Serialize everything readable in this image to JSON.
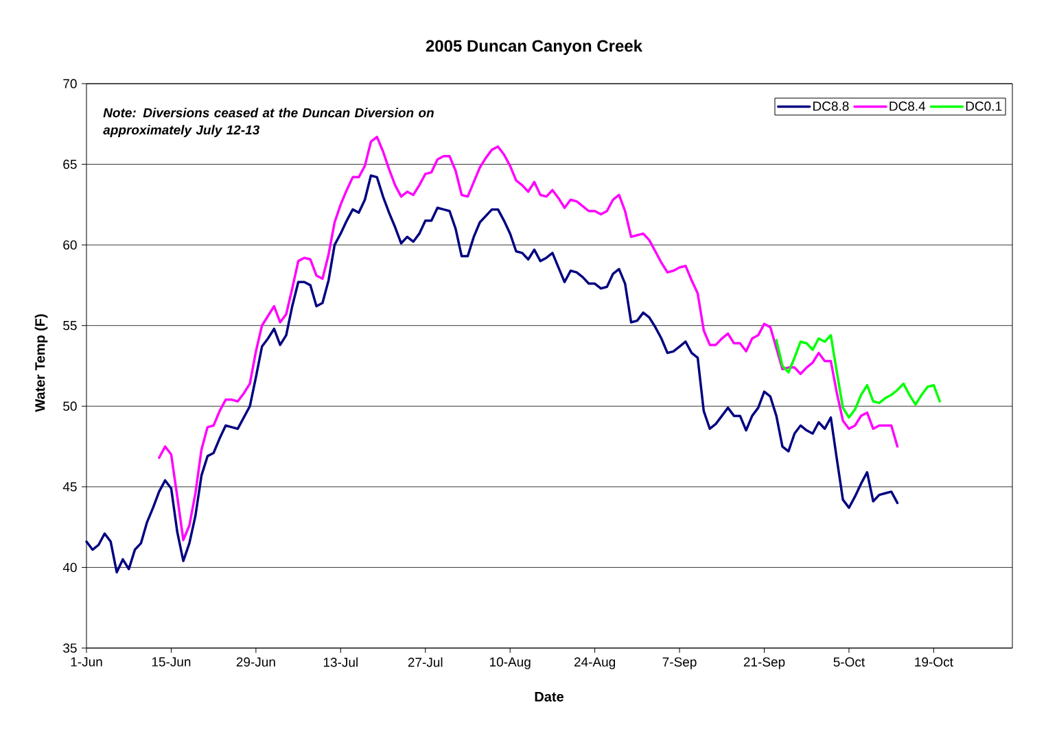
{
  "chart_data": {
    "type": "line",
    "title": "2005 Duncan Canyon Creek",
    "xlabel": "Date",
    "ylabel": "Water Temp (F)",
    "annotations": [
      "Note: Diversions ceased at the Duncan Diversion on approximately July 12-13"
    ],
    "x": [
      "2005-06-01",
      "2005-06-02",
      "2005-06-03",
      "2005-06-04",
      "2005-06-05",
      "2005-06-06",
      "2005-06-07",
      "2005-06-08",
      "2005-06-09",
      "2005-06-10",
      "2005-06-11",
      "2005-06-12",
      "2005-06-13",
      "2005-06-14",
      "2005-06-15",
      "2005-06-16",
      "2005-06-17",
      "2005-06-18",
      "2005-06-19",
      "2005-06-20",
      "2005-06-21",
      "2005-06-22",
      "2005-06-23",
      "2005-06-24",
      "2005-06-25",
      "2005-06-26",
      "2005-06-27",
      "2005-06-28",
      "2005-06-29",
      "2005-06-30",
      "2005-07-01",
      "2005-07-02",
      "2005-07-03",
      "2005-07-04",
      "2005-07-05",
      "2005-07-06",
      "2005-07-07",
      "2005-07-08",
      "2005-07-09",
      "2005-07-10",
      "2005-07-11",
      "2005-07-12",
      "2005-07-13",
      "2005-07-14",
      "2005-07-15",
      "2005-07-16",
      "2005-07-17",
      "2005-07-18",
      "2005-07-19",
      "2005-07-20",
      "2005-07-21",
      "2005-07-22",
      "2005-07-23",
      "2005-07-24",
      "2005-07-25",
      "2005-07-26",
      "2005-07-27",
      "2005-07-28",
      "2005-07-29",
      "2005-07-30",
      "2005-07-31",
      "2005-08-01",
      "2005-08-02",
      "2005-08-03",
      "2005-08-04",
      "2005-08-05",
      "2005-08-06",
      "2005-08-07",
      "2005-08-08",
      "2005-08-09",
      "2005-08-10",
      "2005-08-11",
      "2005-08-12",
      "2005-08-13",
      "2005-08-14",
      "2005-08-15",
      "2005-08-16",
      "2005-08-17",
      "2005-08-18",
      "2005-08-19",
      "2005-08-20",
      "2005-08-21",
      "2005-08-22",
      "2005-08-23",
      "2005-08-24",
      "2005-08-25",
      "2005-08-26",
      "2005-08-27",
      "2005-08-28",
      "2005-08-29",
      "2005-08-30",
      "2005-08-31",
      "2005-09-01",
      "2005-09-02",
      "2005-09-03",
      "2005-09-04",
      "2005-09-05",
      "2005-09-06",
      "2005-09-07",
      "2005-09-08",
      "2005-09-09",
      "2005-09-10",
      "2005-09-11",
      "2005-09-12",
      "2005-09-13",
      "2005-09-14",
      "2005-09-15",
      "2005-09-16",
      "2005-09-17",
      "2005-09-18",
      "2005-09-19",
      "2005-09-20",
      "2005-09-21",
      "2005-09-22",
      "2005-09-23",
      "2005-09-24",
      "2005-09-25",
      "2005-09-26",
      "2005-09-27",
      "2005-09-28",
      "2005-09-29",
      "2005-09-30",
      "2005-10-01",
      "2005-10-02",
      "2005-10-03",
      "2005-10-04",
      "2005-10-05",
      "2005-10-06",
      "2005-10-07",
      "2005-10-08",
      "2005-10-09",
      "2005-10-10",
      "2005-10-11",
      "2005-10-12",
      "2005-10-13",
      "2005-10-14",
      "2005-10-15",
      "2005-10-16",
      "2005-10-17",
      "2005-10-18",
      "2005-10-19",
      "2005-10-20"
    ],
    "series": [
      {
        "name": "DC8.8",
        "color": "#000080",
        "values": [
          41.6,
          41.1,
          41.4,
          42.1,
          41.6,
          39.7,
          40.5,
          39.9,
          41.1,
          41.5,
          42.8,
          43.7,
          44.7,
          45.4,
          44.9,
          42.2,
          40.4,
          41.5,
          43.2,
          45.7,
          46.9,
          47.1,
          48.0,
          48.8,
          48.7,
          48.6,
          49.3,
          50.0,
          51.8,
          53.7,
          54.2,
          54.8,
          53.8,
          54.4,
          56.2,
          57.7,
          57.7,
          57.5,
          56.2,
          56.4,
          57.8,
          60.0,
          60.7,
          61.5,
          62.2,
          62.0,
          62.8,
          64.3,
          64.2,
          63.0,
          62.0,
          61.1,
          60.1,
          60.5,
          60.2,
          60.7,
          61.5,
          61.5,
          62.3,
          62.2,
          62.1,
          61.0,
          59.3,
          59.3,
          60.5,
          61.4,
          61.8,
          62.2,
          62.2,
          61.5,
          60.7,
          59.6,
          59.5,
          59.1,
          59.7,
          59.0,
          59.2,
          59.5,
          58.6,
          57.7,
          58.4,
          58.3,
          58.0,
          57.6,
          57.6,
          57.3,
          57.4,
          58.2,
          58.5,
          57.6,
          55.2,
          55.3,
          55.8,
          55.5,
          54.9,
          54.2,
          53.3,
          53.4,
          53.7,
          54.0,
          53.3,
          53.0,
          49.7,
          48.6,
          48.9,
          49.4,
          49.9,
          49.4,
          49.4,
          48.5,
          49.4,
          49.9,
          50.9,
          50.6,
          49.4,
          47.5,
          47.2,
          48.3,
          48.8,
          48.5,
          48.3,
          49.0,
          48.6,
          49.3,
          46.7,
          44.2,
          43.7,
          44.4,
          45.2,
          45.9,
          44.1,
          44.5,
          44.6,
          44.7,
          44.0,
          null,
          null,
          null,
          null,
          null,
          null,
          null
        ]
      },
      {
        "name": "DC8.4",
        "color": "#ff00ff",
        "values": [
          null,
          null,
          null,
          null,
          null,
          null,
          null,
          null,
          null,
          null,
          null,
          null,
          46.8,
          47.5,
          47.0,
          44.4,
          41.7,
          42.6,
          44.6,
          47.3,
          48.7,
          48.8,
          49.7,
          50.4,
          50.4,
          50.3,
          50.8,
          51.4,
          53.4,
          55.0,
          55.6,
          56.2,
          55.2,
          55.7,
          57.3,
          59.0,
          59.2,
          59.1,
          58.1,
          57.9,
          59.4,
          61.4,
          62.5,
          63.4,
          64.2,
          64.2,
          64.9,
          66.4,
          66.7,
          65.8,
          64.7,
          63.7,
          63.0,
          63.3,
          63.1,
          63.7,
          64.4,
          64.5,
          65.3,
          65.5,
          65.5,
          64.6,
          63.1,
          63.0,
          63.9,
          64.8,
          65.4,
          65.9,
          66.1,
          65.6,
          64.9,
          64.0,
          63.7,
          63.3,
          63.9,
          63.1,
          63.0,
          63.4,
          62.9,
          62.3,
          62.8,
          62.7,
          62.4,
          62.1,
          62.1,
          61.9,
          62.1,
          62.8,
          63.1,
          62.1,
          60.5,
          60.6,
          60.7,
          60.3,
          59.6,
          58.9,
          58.3,
          58.4,
          58.6,
          58.7,
          57.8,
          57.0,
          54.7,
          53.8,
          53.8,
          54.2,
          54.5,
          53.9,
          53.9,
          53.4,
          54.2,
          54.4,
          55.1,
          54.9,
          53.6,
          52.3,
          52.4,
          52.4,
          52.0,
          52.4,
          52.7,
          53.3,
          52.8,
          52.8,
          50.8,
          49.1,
          48.6,
          48.8,
          49.4,
          49.6,
          48.6,
          48.8,
          48.8,
          48.8,
          47.5,
          null,
          null,
          null,
          null,
          null,
          null,
          null
        ]
      },
      {
        "name": "DC0.1",
        "color": "#00ff00",
        "values": [
          null,
          null,
          null,
          null,
          null,
          null,
          null,
          null,
          null,
          null,
          null,
          null,
          null,
          null,
          null,
          null,
          null,
          null,
          null,
          null,
          null,
          null,
          null,
          null,
          null,
          null,
          null,
          null,
          null,
          null,
          null,
          null,
          null,
          null,
          null,
          null,
          null,
          null,
          null,
          null,
          null,
          null,
          null,
          null,
          null,
          null,
          null,
          null,
          null,
          null,
          null,
          null,
          null,
          null,
          null,
          null,
          null,
          null,
          null,
          null,
          null,
          null,
          null,
          null,
          null,
          null,
          null,
          null,
          null,
          null,
          null,
          null,
          null,
          null,
          null,
          null,
          null,
          null,
          null,
          null,
          null,
          null,
          null,
          null,
          null,
          null,
          null,
          null,
          null,
          null,
          null,
          null,
          null,
          null,
          null,
          null,
          null,
          null,
          null,
          null,
          null,
          null,
          null,
          null,
          null,
          null,
          null,
          null,
          null,
          null,
          null,
          null,
          null,
          null,
          54.1,
          52.5,
          52.1,
          53.0,
          54.0,
          53.9,
          53.5,
          54.2,
          54.0,
          54.4,
          52.1,
          49.9,
          49.3,
          49.8,
          50.7,
          51.3,
          50.3,
          50.2,
          50.5,
          50.7,
          51.0,
          51.4,
          50.7,
          50.1,
          50.7,
          51.2,
          51.3,
          50.3
        ]
      }
    ],
    "xlim": [
      "2005-06-01",
      "2005-11-01"
    ],
    "xticks": [
      {
        "value": "2005-06-01",
        "label": "1-Jun"
      },
      {
        "value": "2005-06-15",
        "label": "15-Jun"
      },
      {
        "value": "2005-06-29",
        "label": "29-Jun"
      },
      {
        "value": "2005-07-13",
        "label": "13-Jul"
      },
      {
        "value": "2005-07-27",
        "label": "27-Jul"
      },
      {
        "value": "2005-08-10",
        "label": "10-Aug"
      },
      {
        "value": "2005-08-24",
        "label": "24-Aug"
      },
      {
        "value": "2005-09-07",
        "label": "7-Sep"
      },
      {
        "value": "2005-09-21",
        "label": "21-Sep"
      },
      {
        "value": "2005-10-05",
        "label": "5-Oct"
      },
      {
        "value": "2005-10-19",
        "label": "19-Oct"
      }
    ],
    "ylim": [
      35,
      70
    ],
    "yticks": [
      35,
      40,
      45,
      50,
      55,
      60,
      65,
      70
    ],
    "grid": "y",
    "legend": "top right",
    "line_style": "solid"
  }
}
